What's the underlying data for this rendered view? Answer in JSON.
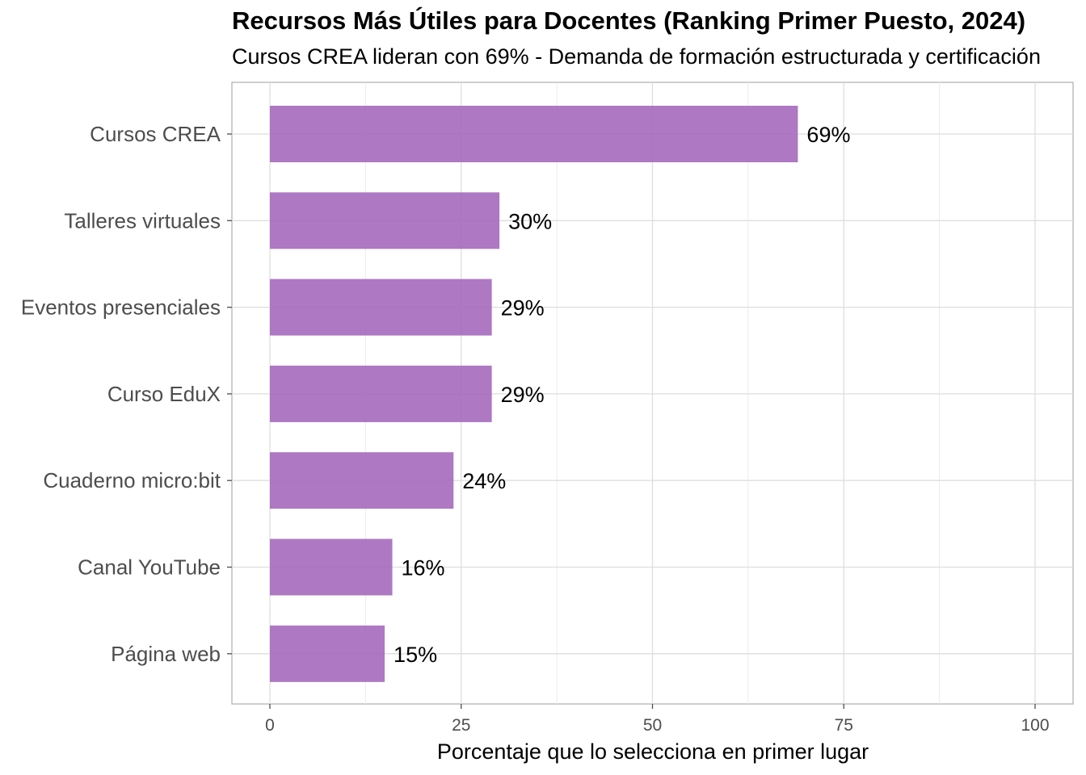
{
  "chart_data": {
    "type": "bar",
    "orientation": "horizontal",
    "title": "Recursos Más Útiles para Docentes (Ranking Primer Puesto, 2024)",
    "subtitle": "Cursos CREA lideran con 69% - Demanda de formación estructurada y certificación",
    "xlabel": "Porcentaje que lo selecciona en primer lugar",
    "ylabel": "",
    "categories": [
      "Cursos CREA",
      "Talleres virtuales",
      "Eventos presenciales",
      "Curso EduX",
      "Cuaderno micro:bit",
      "Canal YouTube",
      "Página web"
    ],
    "values": [
      69,
      30,
      29,
      29,
      24,
      16,
      15
    ],
    "value_labels": [
      "69%",
      "30%",
      "29%",
      "29%",
      "24%",
      "16%",
      "15%"
    ],
    "xlim": [
      0,
      100
    ],
    "x_ticks": [
      0,
      25,
      50,
      75,
      100
    ],
    "x_tick_labels": [
      "0",
      "25",
      "50",
      "75",
      "100"
    ],
    "bar_color": "#a569bd",
    "grid": true,
    "legend": "none"
  }
}
